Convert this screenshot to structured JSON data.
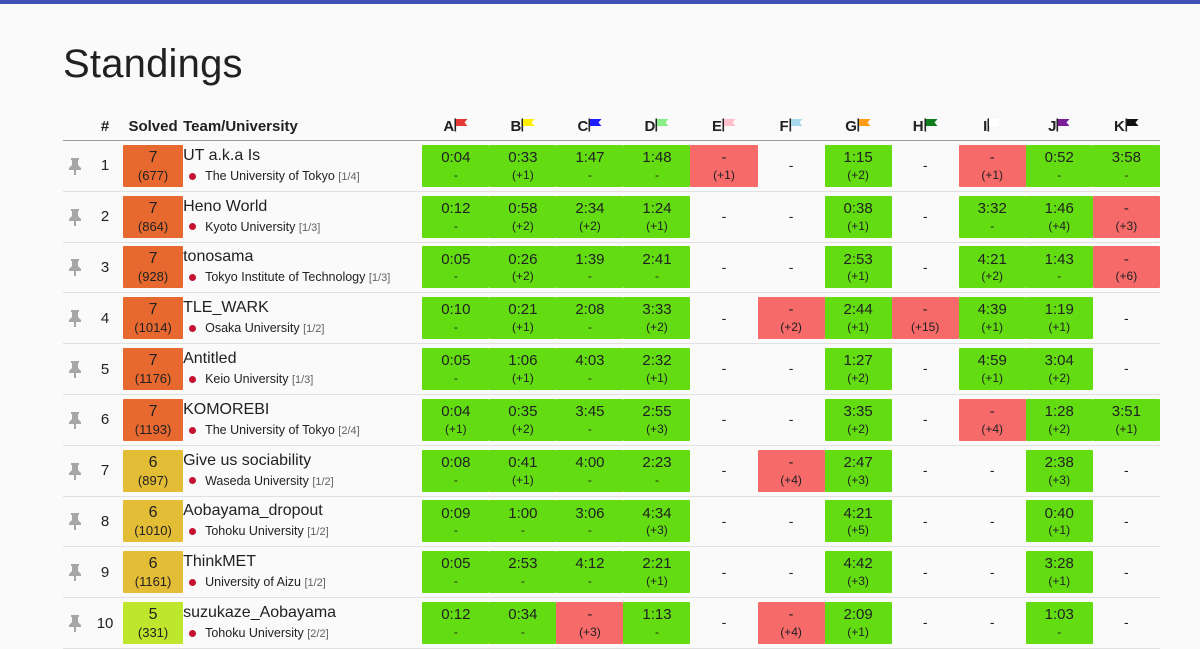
{
  "page": {
    "title": "Standings"
  },
  "header": {
    "rank": "#",
    "solved": "Solved",
    "team": "Team/University"
  },
  "problems": [
    {
      "label": "A",
      "flag_color": "#e53935",
      "flag_icon": "flag-icon"
    },
    {
      "label": "B",
      "flag_color": "#ffee00",
      "flag_icon": "flag-icon"
    },
    {
      "label": "C",
      "flag_color": "#1c1cff",
      "flag_icon": "flag-icon"
    },
    {
      "label": "D",
      "flag_color": "#88ee88",
      "flag_icon": "flag-icon"
    },
    {
      "label": "E",
      "flag_color": "#ffc0cb",
      "flag_icon": "flag-icon"
    },
    {
      "label": "F",
      "flag_color": "#a8d8ee",
      "flag_icon": "flag-icon"
    },
    {
      "label": "G",
      "flag_color": "#ff9c12",
      "flag_icon": "flag-icon"
    },
    {
      "label": "H",
      "flag_color": "#0e7d1e",
      "flag_icon": "flag-icon"
    },
    {
      "label": "I",
      "flag_color": "#ffffff",
      "flag_icon": "flag-icon"
    },
    {
      "label": "J",
      "flag_color": "#7a1e9c",
      "flag_icon": "flag-icon"
    },
    {
      "label": "K",
      "flag_color": "#111111",
      "flag_icon": "flag-icon"
    }
  ],
  "colors": {
    "accepted": "#63dd12",
    "rejected": "#f66a6a",
    "solved_7": "#e8692f",
    "solved_6": "#e4bd37",
    "solved_5": "#bee62d",
    "top_bar": "#3f51b5",
    "pin_icon": "#a6a6a6",
    "flag_dot": "#c41230"
  },
  "rows": [
    {
      "rank": "1",
      "solved": "7",
      "penalty": "(677)",
      "team": "UT a.k.a Is",
      "university": "The University of Tokyo",
      "univ_rank": "[1/4]",
      "results": [
        [
          "ac",
          "0:04",
          "-"
        ],
        [
          "ac",
          "0:33",
          "(+1)"
        ],
        [
          "ac",
          "1:47",
          "-"
        ],
        [
          "ac",
          "1:48",
          "-"
        ],
        [
          "wa",
          "-",
          "(+1)"
        ],
        [
          "none",
          "-",
          ""
        ],
        [
          "ac",
          "1:15",
          "(+2)"
        ],
        [
          "none",
          "-",
          ""
        ],
        [
          "wa",
          "-",
          "(+1)"
        ],
        [
          "ac",
          "0:52",
          "-"
        ],
        [
          "ac",
          "3:58",
          "-"
        ]
      ]
    },
    {
      "rank": "2",
      "solved": "7",
      "penalty": "(864)",
      "team": "Heno World",
      "university": "Kyoto University",
      "univ_rank": "[1/3]",
      "results": [
        [
          "ac",
          "0:12",
          "-"
        ],
        [
          "ac",
          "0:58",
          "(+2)"
        ],
        [
          "ac",
          "2:34",
          "(+2)"
        ],
        [
          "ac",
          "1:24",
          "(+1)"
        ],
        [
          "none",
          "-",
          ""
        ],
        [
          "none",
          "-",
          ""
        ],
        [
          "ac",
          "0:38",
          "(+1)"
        ],
        [
          "none",
          "-",
          ""
        ],
        [
          "ac",
          "3:32",
          "-"
        ],
        [
          "ac",
          "1:46",
          "(+4)"
        ],
        [
          "wa",
          "-",
          "(+3)"
        ]
      ]
    },
    {
      "rank": "3",
      "solved": "7",
      "penalty": "(928)",
      "team": "tonosama",
      "university": "Tokyo Institute of Technology",
      "univ_rank": "[1/3]",
      "results": [
        [
          "ac",
          "0:05",
          "-"
        ],
        [
          "ac",
          "0:26",
          "(+2)"
        ],
        [
          "ac",
          "1:39",
          "-"
        ],
        [
          "ac",
          "2:41",
          "-"
        ],
        [
          "none",
          "-",
          ""
        ],
        [
          "none",
          "-",
          ""
        ],
        [
          "ac",
          "2:53",
          "(+1)"
        ],
        [
          "none",
          "-",
          ""
        ],
        [
          "ac",
          "4:21",
          "(+2)"
        ],
        [
          "ac",
          "1:43",
          "-"
        ],
        [
          "wa",
          "-",
          "(+6)"
        ]
      ]
    },
    {
      "rank": "4",
      "solved": "7",
      "penalty": "(1014)",
      "team": "TLE_WARK",
      "university": "Osaka University",
      "univ_rank": "[1/2]",
      "results": [
        [
          "ac",
          "0:10",
          "-"
        ],
        [
          "ac",
          "0:21",
          "(+1)"
        ],
        [
          "ac",
          "2:08",
          "-"
        ],
        [
          "ac",
          "3:33",
          "(+2)"
        ],
        [
          "none",
          "-",
          ""
        ],
        [
          "wa",
          "-",
          "(+2)"
        ],
        [
          "ac",
          "2:44",
          "(+1)"
        ],
        [
          "wa",
          "-",
          "(+15)"
        ],
        [
          "ac",
          "4:39",
          "(+1)"
        ],
        [
          "ac",
          "1:19",
          "(+1)"
        ],
        [
          "none",
          "-",
          ""
        ]
      ]
    },
    {
      "rank": "5",
      "solved": "7",
      "penalty": "(1176)",
      "team": "Antitled",
      "university": "Keio University",
      "univ_rank": "[1/3]",
      "results": [
        [
          "ac",
          "0:05",
          "-"
        ],
        [
          "ac",
          "1:06",
          "(+1)"
        ],
        [
          "ac",
          "4:03",
          "-"
        ],
        [
          "ac",
          "2:32",
          "(+1)"
        ],
        [
          "none",
          "-",
          ""
        ],
        [
          "none",
          "-",
          ""
        ],
        [
          "ac",
          "1:27",
          "(+2)"
        ],
        [
          "none",
          "-",
          ""
        ],
        [
          "ac",
          "4:59",
          "(+1)"
        ],
        [
          "ac",
          "3:04",
          "(+2)"
        ],
        [
          "none",
          "-",
          ""
        ]
      ]
    },
    {
      "rank": "6",
      "solved": "7",
      "penalty": "(1193)",
      "team": "KOMOREBI",
      "university": "The University of Tokyo",
      "univ_rank": "[2/4]",
      "results": [
        [
          "ac",
          "0:04",
          "(+1)"
        ],
        [
          "ac",
          "0:35",
          "(+2)"
        ],
        [
          "ac",
          "3:45",
          "-"
        ],
        [
          "ac",
          "2:55",
          "(+3)"
        ],
        [
          "none",
          "-",
          ""
        ],
        [
          "none",
          "-",
          ""
        ],
        [
          "ac",
          "3:35",
          "(+2)"
        ],
        [
          "none",
          "-",
          ""
        ],
        [
          "wa",
          "-",
          "(+4)"
        ],
        [
          "ac",
          "1:28",
          "(+2)"
        ],
        [
          "ac",
          "3:51",
          "(+1)"
        ]
      ]
    },
    {
      "rank": "7",
      "solved": "6",
      "penalty": "(897)",
      "team": "Give us sociability",
      "university": "Waseda University",
      "univ_rank": "[1/2]",
      "results": [
        [
          "ac",
          "0:08",
          "-"
        ],
        [
          "ac",
          "0:41",
          "(+1)"
        ],
        [
          "ac",
          "4:00",
          "-"
        ],
        [
          "ac",
          "2:23",
          "-"
        ],
        [
          "none",
          "-",
          ""
        ],
        [
          "wa",
          "-",
          "(+4)"
        ],
        [
          "ac",
          "2:47",
          "(+3)"
        ],
        [
          "none",
          "-",
          ""
        ],
        [
          "none",
          "-",
          ""
        ],
        [
          "ac",
          "2:38",
          "(+3)"
        ],
        [
          "none",
          "-",
          ""
        ]
      ]
    },
    {
      "rank": "8",
      "solved": "6",
      "penalty": "(1010)",
      "team": "Aobayama_dropout",
      "university": "Tohoku University",
      "univ_rank": "[1/2]",
      "results": [
        [
          "ac",
          "0:09",
          "-"
        ],
        [
          "ac",
          "1:00",
          "-"
        ],
        [
          "ac",
          "3:06",
          "-"
        ],
        [
          "ac",
          "4:34",
          "(+3)"
        ],
        [
          "none",
          "-",
          ""
        ],
        [
          "none",
          "-",
          ""
        ],
        [
          "ac",
          "4:21",
          "(+5)"
        ],
        [
          "none",
          "-",
          ""
        ],
        [
          "none",
          "-",
          ""
        ],
        [
          "ac",
          "0:40",
          "(+1)"
        ],
        [
          "none",
          "-",
          ""
        ]
      ]
    },
    {
      "rank": "9",
      "solved": "6",
      "penalty": "(1161)",
      "team": "ThinkMET",
      "university": "University of Aizu",
      "univ_rank": "[1/2]",
      "results": [
        [
          "ac",
          "0:05",
          "-"
        ],
        [
          "ac",
          "2:53",
          "-"
        ],
        [
          "ac",
          "4:12",
          "-"
        ],
        [
          "ac",
          "2:21",
          "(+1)"
        ],
        [
          "none",
          "-",
          ""
        ],
        [
          "none",
          "-",
          ""
        ],
        [
          "ac",
          "4:42",
          "(+3)"
        ],
        [
          "none",
          "-",
          ""
        ],
        [
          "none",
          "-",
          ""
        ],
        [
          "ac",
          "3:28",
          "(+1)"
        ],
        [
          "none",
          "-",
          ""
        ]
      ]
    },
    {
      "rank": "10",
      "solved": "5",
      "penalty": "(331)",
      "team": "suzukaze_Aobayama",
      "university": "Tohoku University",
      "univ_rank": "[2/2]",
      "results": [
        [
          "ac",
          "0:12",
          "-"
        ],
        [
          "ac",
          "0:34",
          "-"
        ],
        [
          "wa",
          "-",
          "(+3)"
        ],
        [
          "ac",
          "1:13",
          "-"
        ],
        [
          "none",
          "-",
          ""
        ],
        [
          "wa",
          "-",
          "(+4)"
        ],
        [
          "ac",
          "2:09",
          "(+1)"
        ],
        [
          "none",
          "-",
          ""
        ],
        [
          "none",
          "-",
          ""
        ],
        [
          "ac",
          "1:03",
          "-"
        ],
        [
          "none",
          "-",
          ""
        ]
      ]
    }
  ]
}
